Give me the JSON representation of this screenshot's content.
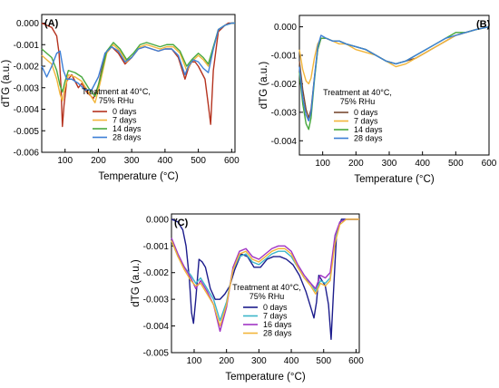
{
  "chart_data": [
    {
      "type": "line",
      "panel_label": "(A)",
      "xlabel": "Temperature (°C)",
      "ylabel": "dTG (a.u.)",
      "xlim": [
        30,
        610
      ],
      "ylim": [
        -0.006,
        0.0004
      ],
      "x_ticks": [
        100,
        200,
        300,
        400,
        500,
        600
      ],
      "x_tick_labels": [
        "100",
        "200",
        "300",
        "400",
        "500",
        "600"
      ],
      "y_ticks": [
        0.0,
        -0.001,
        -0.002,
        -0.003,
        -0.004,
        -0.005,
        -0.006
      ],
      "y_tick_labels": [
        "0.000",
        "-0.001",
        "-0.002",
        "-0.003",
        "-0.004",
        "-0.005",
        "-0.006"
      ],
      "legend": {
        "title_line1": "Treatment at 40°C,",
        "title_line2": "75% RHu",
        "placement": "lower-center"
      },
      "series": [
        {
          "name": "0 days",
          "color": "#b5331f",
          "x": [
            30,
            60,
            75,
            82,
            88,
            92,
            97,
            105,
            120,
            140,
            150,
            165,
            185,
            200,
            220,
            240,
            260,
            280,
            300,
            320,
            340,
            360,
            380,
            400,
            420,
            440,
            460,
            470,
            480,
            490,
            500,
            510,
            520,
            530,
            537,
            545,
            560,
            580,
            590,
            600,
            610
          ],
          "y": [
            0.0,
            -0.0002,
            -0.0006,
            -0.0014,
            -0.003,
            -0.0048,
            -0.0038,
            -0.0027,
            -0.0024,
            -0.003,
            -0.0028,
            -0.0032,
            -0.0035,
            -0.0029,
            -0.0014,
            -0.0011,
            -0.0014,
            -0.0019,
            -0.0016,
            -0.0012,
            -0.0011,
            -0.0012,
            -0.0013,
            -0.0012,
            -0.0012,
            -0.0016,
            -0.0026,
            -0.0021,
            -0.0018,
            -0.0018,
            -0.002,
            -0.0023,
            -0.0026,
            -0.0038,
            -0.0047,
            -0.0022,
            -0.0004,
            -0.0001,
            0.0,
            0.0,
            0.0
          ]
        },
        {
          "name": "7 days",
          "color": "#f2b53a",
          "x": [
            30,
            60,
            75,
            85,
            92,
            100,
            110,
            130,
            150,
            170,
            190,
            205,
            225,
            245,
            265,
            285,
            305,
            325,
            345,
            365,
            385,
            405,
            425,
            445,
            465,
            480,
            500,
            515,
            530,
            545,
            560,
            580,
            600,
            610
          ],
          "y": [
            -0.0015,
            -0.0019,
            -0.0026,
            -0.0033,
            -0.0036,
            -0.003,
            -0.0024,
            -0.0025,
            -0.0027,
            -0.0032,
            -0.0037,
            -0.0028,
            -0.0014,
            -0.001,
            -0.0013,
            -0.0018,
            -0.0015,
            -0.0011,
            -0.001,
            -0.0011,
            -0.0012,
            -0.0011,
            -0.0011,
            -0.0014,
            -0.0022,
            -0.0018,
            -0.0015,
            -0.0017,
            -0.002,
            -0.0012,
            -0.0003,
            -0.0001,
            0.0,
            0.0
          ]
        },
        {
          "name": "14 days",
          "color": "#47a83d",
          "x": [
            30,
            60,
            75,
            85,
            92,
            100,
            110,
            130,
            150,
            170,
            190,
            205,
            225,
            245,
            265,
            285,
            305,
            325,
            345,
            365,
            385,
            405,
            425,
            445,
            465,
            480,
            500,
            515,
            530,
            545,
            560,
            580,
            600,
            610
          ],
          "y": [
            -0.0012,
            -0.0016,
            -0.0022,
            -0.0029,
            -0.0032,
            -0.0027,
            -0.0022,
            -0.0023,
            -0.0025,
            -0.003,
            -0.0034,
            -0.0026,
            -0.0013,
            -0.0009,
            -0.0012,
            -0.0017,
            -0.0014,
            -0.001,
            -0.0009,
            -0.001,
            -0.0011,
            -0.001,
            -0.001,
            -0.0013,
            -0.002,
            -0.0017,
            -0.0014,
            -0.0016,
            -0.0019,
            -0.0011,
            -0.0003,
            -0.0001,
            0.0,
            0.0
          ]
        },
        {
          "name": "28 days",
          "color": "#3d7fd6",
          "x": [
            30,
            45,
            60,
            75,
            85,
            95,
            105,
            120,
            140,
            160,
            180,
            200,
            220,
            240,
            260,
            280,
            300,
            320,
            340,
            360,
            380,
            400,
            420,
            440,
            460,
            470,
            485,
            500,
            515,
            530,
            545,
            560,
            580,
            600,
            610
          ],
          "y": [
            -0.002,
            -0.0025,
            -0.002,
            -0.0014,
            -0.0013,
            -0.0022,
            -0.0026,
            -0.0026,
            -0.0028,
            -0.0031,
            -0.0031,
            -0.0025,
            -0.0014,
            -0.0011,
            -0.0013,
            -0.0018,
            -0.0016,
            -0.0012,
            -0.0011,
            -0.0012,
            -0.0013,
            -0.0012,
            -0.0012,
            -0.0015,
            -0.0024,
            -0.002,
            -0.0017,
            -0.0018,
            -0.0021,
            -0.0023,
            -0.0012,
            -0.0003,
            -0.0001,
            0.0,
            0.0
          ]
        }
      ]
    },
    {
      "type": "line",
      "panel_label": "(B)",
      "xlabel": "Temperature (°C)",
      "ylabel": "dTG (a.u.)",
      "xlim": [
        30,
        600
      ],
      "ylim": [
        -0.0045,
        0.0004
      ],
      "x_ticks": [
        100,
        200,
        300,
        400,
        500,
        600
      ],
      "x_tick_labels": [
        "100",
        "200",
        "300",
        "400",
        "500",
        "600"
      ],
      "y_ticks": [
        0.0,
        -0.001,
        -0.002,
        -0.003,
        -0.004
      ],
      "y_tick_labels": [
        "0.000",
        "-0.001",
        "-0.002",
        "-0.003",
        "-0.004"
      ],
      "legend": {
        "title_line1": "Treatment at 40°C,",
        "title_line2": "75% RHu",
        "placement": "lower-center"
      },
      "series": [
        {
          "name": "0 days",
          "color": "#7a4a32",
          "x": [
            30,
            40,
            50,
            58,
            65,
            75,
            85,
            95,
            110,
            130,
            150,
            170,
            200,
            230,
            260,
            290,
            320,
            350,
            380,
            410,
            440,
            470,
            500,
            530,
            560,
            600
          ],
          "y": [
            -0.0012,
            -0.0022,
            -0.0029,
            -0.0032,
            -0.0029,
            -0.0018,
            -0.0008,
            -0.0004,
            -0.0004,
            -0.0005,
            -0.0005,
            -0.0006,
            -0.0007,
            -0.0008,
            -0.001,
            -0.0012,
            -0.0013,
            -0.0012,
            -0.0011,
            -0.0009,
            -0.0007,
            -0.0005,
            -0.0003,
            -0.0002,
            -0.0001,
            0.0
          ]
        },
        {
          "name": "7 days",
          "color": "#f2b53a",
          "x": [
            30,
            40,
            50,
            58,
            65,
            75,
            85,
            95,
            110,
            130,
            150,
            170,
            200,
            230,
            260,
            290,
            320,
            350,
            380,
            410,
            440,
            470,
            500,
            530,
            560,
            600
          ],
          "y": [
            -0.0008,
            -0.0015,
            -0.0019,
            -0.002,
            -0.0018,
            -0.0011,
            -0.0006,
            -0.0004,
            -0.0004,
            -0.0005,
            -0.0006,
            -0.0006,
            -0.0008,
            -0.0009,
            -0.001,
            -0.0012,
            -0.0014,
            -0.0013,
            -0.0011,
            -0.0009,
            -0.0007,
            -0.0005,
            -0.0003,
            -0.0002,
            -0.0001,
            0.0
          ]
        },
        {
          "name": "14 days",
          "color": "#47a83d",
          "x": [
            30,
            40,
            50,
            58,
            65,
            75,
            85,
            95,
            110,
            130,
            150,
            170,
            200,
            230,
            260,
            290,
            320,
            350,
            380,
            410,
            440,
            470,
            500,
            530,
            560,
            600
          ],
          "y": [
            -0.0016,
            -0.0027,
            -0.0034,
            -0.0036,
            -0.0032,
            -0.0019,
            -0.0008,
            -0.0004,
            -0.0004,
            -0.0005,
            -0.0005,
            -0.0006,
            -0.0007,
            -0.0008,
            -0.001,
            -0.0012,
            -0.0013,
            -0.0012,
            -0.001,
            -0.0008,
            -0.0006,
            -0.0004,
            -0.0002,
            -0.0002,
            -0.0001,
            0.0
          ]
        },
        {
          "name": "28 days",
          "color": "#3d7fd6",
          "x": [
            30,
            40,
            50,
            58,
            65,
            75,
            85,
            95,
            110,
            130,
            150,
            170,
            200,
            230,
            260,
            290,
            320,
            350,
            380,
            410,
            440,
            470,
            500,
            530,
            560,
            600
          ],
          "y": [
            -0.0014,
            -0.0025,
            -0.0031,
            -0.0033,
            -0.003,
            -0.0018,
            -0.0007,
            -0.0003,
            -0.0004,
            -0.0005,
            -0.0005,
            -0.0006,
            -0.0007,
            -0.0008,
            -0.001,
            -0.0012,
            -0.0013,
            -0.0012,
            -0.001,
            -0.0008,
            -0.0006,
            -0.0004,
            -0.0003,
            -0.0002,
            -0.0001,
            0.0
          ]
        }
      ]
    },
    {
      "type": "line",
      "panel_label": "(C)",
      "xlabel": "Temperature (°C)",
      "ylabel": "dTG (a.u.)",
      "xlim": [
        30,
        610
      ],
      "ylim": [
        -0.005,
        0.0002
      ],
      "x_ticks": [
        100,
        200,
        300,
        400,
        500,
        600
      ],
      "x_tick_labels": [
        "100",
        "200",
        "300",
        "400",
        "500",
        "600"
      ],
      "y_ticks": [
        0.0,
        -0.001,
        -0.002,
        -0.003,
        -0.004,
        -0.005
      ],
      "y_tick_labels": [
        "0.000",
        "-0.001",
        "-0.002",
        "-0.003",
        "-0.004",
        "-0.005"
      ],
      "legend": {
        "title_line1": "Treatment at 40°C,",
        "title_line2": "75% RHu",
        "placement": "lower-center"
      },
      "series": [
        {
          "name": "0 days",
          "color": "#1c1c8c",
          "x": [
            30,
            50,
            65,
            75,
            85,
            92,
            98,
            105,
            115,
            125,
            135,
            150,
            165,
            180,
            195,
            210,
            225,
            245,
            265,
            285,
            305,
            325,
            345,
            365,
            385,
            405,
            425,
            445,
            460,
            470,
            478,
            485,
            495,
            505,
            515,
            523,
            530,
            540,
            555,
            570,
            590,
            610
          ],
          "y": [
            0.0,
            -0.0001,
            -0.0004,
            -0.001,
            -0.0022,
            -0.0035,
            -0.0039,
            -0.003,
            -0.0015,
            -0.0016,
            -0.0018,
            -0.0026,
            -0.003,
            -0.003,
            -0.0028,
            -0.0025,
            -0.0019,
            -0.0013,
            -0.0014,
            -0.0018,
            -0.0018,
            -0.0015,
            -0.0014,
            -0.0014,
            -0.0015,
            -0.0017,
            -0.0021,
            -0.0027,
            -0.0033,
            -0.0037,
            -0.0031,
            -0.0021,
            -0.0023,
            -0.0025,
            -0.0032,
            -0.0045,
            -0.0028,
            -0.0005,
            0.0,
            0.0,
            0.0,
            0.0
          ]
        },
        {
          "name": "7 days",
          "color": "#3cb6c9",
          "x": [
            30,
            50,
            70,
            90,
            105,
            120,
            140,
            160,
            180,
            200,
            220,
            240,
            260,
            280,
            300,
            320,
            340,
            360,
            380,
            400,
            420,
            440,
            460,
            475,
            490,
            505,
            520,
            535,
            550,
            570,
            590,
            610
          ],
          "y": [
            -0.0008,
            -0.0014,
            -0.0018,
            -0.0021,
            -0.0024,
            -0.0022,
            -0.0026,
            -0.003,
            -0.0038,
            -0.0031,
            -0.0019,
            -0.0014,
            -0.0013,
            -0.0016,
            -0.0017,
            -0.0015,
            -0.0013,
            -0.0012,
            -0.0012,
            -0.0014,
            -0.0018,
            -0.0022,
            -0.0024,
            -0.0027,
            -0.0023,
            -0.0024,
            -0.0022,
            -0.0008,
            -0.0001,
            0.0,
            0.0,
            0.0
          ]
        },
        {
          "name": "16 days",
          "color": "#a034c4",
          "x": [
            30,
            50,
            70,
            90,
            105,
            120,
            140,
            160,
            180,
            200,
            220,
            240,
            260,
            280,
            300,
            320,
            340,
            360,
            380,
            400,
            420,
            440,
            460,
            475,
            490,
            505,
            520,
            535,
            550,
            570,
            590,
            610
          ],
          "y": [
            -0.0007,
            -0.0013,
            -0.0018,
            -0.0022,
            -0.0026,
            -0.0023,
            -0.0027,
            -0.0032,
            -0.0042,
            -0.0033,
            -0.0018,
            -0.0012,
            -0.0011,
            -0.0014,
            -0.0015,
            -0.0013,
            -0.0011,
            -0.001,
            -0.001,
            -0.0012,
            -0.0017,
            -0.0021,
            -0.0024,
            -0.0026,
            -0.0021,
            -0.0022,
            -0.002,
            -0.0006,
            -0.0001,
            0.0,
            0.0,
            0.0
          ]
        },
        {
          "name": "28 days",
          "color": "#f2b53a",
          "x": [
            30,
            50,
            70,
            90,
            105,
            120,
            140,
            160,
            180,
            200,
            220,
            240,
            260,
            280,
            300,
            320,
            340,
            360,
            380,
            400,
            420,
            440,
            460,
            475,
            490,
            505,
            520,
            535,
            550,
            570,
            590,
            610
          ],
          "y": [
            -0.0008,
            -0.0014,
            -0.0019,
            -0.0023,
            -0.0025,
            -0.0024,
            -0.0028,
            -0.0032,
            -0.004,
            -0.0032,
            -0.0019,
            -0.0013,
            -0.0012,
            -0.0015,
            -0.0016,
            -0.0014,
            -0.0012,
            -0.0011,
            -0.0011,
            -0.0013,
            -0.0018,
            -0.0022,
            -0.0025,
            -0.0028,
            -0.0024,
            -0.0025,
            -0.0023,
            -0.0009,
            -0.0002,
            0.0,
            0.0,
            0.0
          ]
        }
      ]
    }
  ]
}
